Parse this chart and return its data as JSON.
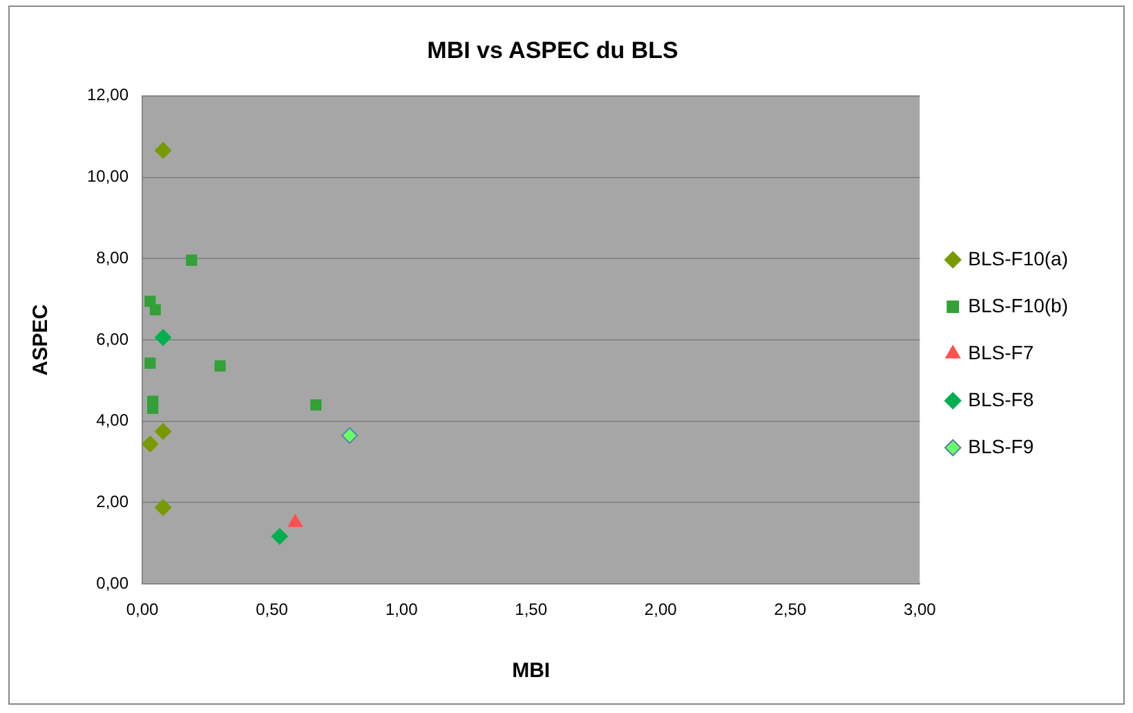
{
  "chart_data": {
    "type": "scatter",
    "title": "MBI vs ASPEC du BLS",
    "xlabel": "MBI",
    "ylabel": "ASPEC",
    "series": [
      {
        "name": "BLS-F10(a)",
        "color": "#789a00",
        "marker": "diamond",
        "x": [
          0.08,
          0.03,
          0.08,
          0.08
        ],
        "values": [
          10.66,
          3.44,
          3.75,
          1.88
        ]
      },
      {
        "name": "BLS-F10(b)",
        "color": "#33a038",
        "marker": "square",
        "x": [
          0.19,
          0.03,
          0.05,
          0.03,
          0.04,
          0.04,
          0.3,
          0.67
        ],
        "values": [
          7.96,
          6.95,
          6.74,
          5.43,
          4.49,
          4.32,
          5.36,
          4.4
        ]
      },
      {
        "name": "BLS-F7",
        "color": "#ff5050",
        "marker": "triangle",
        "x": [
          0.59
        ],
        "values": [
          1.51
        ]
      },
      {
        "name": "BLS-F8",
        "color": "#00b050",
        "marker": "diamond",
        "x": [
          0.08,
          0.53
        ],
        "values": [
          6.06,
          1.17
        ]
      },
      {
        "name": "BLS-F9",
        "color": "#66ff66",
        "marker": "diamond",
        "x": [
          0.8
        ],
        "values": [
          3.65
        ]
      }
    ],
    "xlim": [
      0,
      3
    ],
    "ylim": [
      0,
      12
    ],
    "xticks": [
      {
        "value": 0,
        "label": "0,00"
      },
      {
        "value": 0.5,
        "label": "0,50"
      },
      {
        "value": 1,
        "label": "1,00"
      },
      {
        "value": 1.5,
        "label": "1,50"
      },
      {
        "value": 2,
        "label": "2,00"
      },
      {
        "value": 2.5,
        "label": "2,50"
      },
      {
        "value": 3,
        "label": "3,00"
      }
    ],
    "yticks": [
      {
        "value": 0,
        "label": "0,00"
      },
      {
        "value": 2,
        "label": "2,00"
      },
      {
        "value": 4,
        "label": "4,00"
      },
      {
        "value": 6,
        "label": "6,00"
      },
      {
        "value": 8,
        "label": "8,00"
      },
      {
        "value": 10,
        "label": "10,00"
      },
      {
        "value": 12,
        "label": "12,00"
      }
    ],
    "grid": "y",
    "legend": "right"
  }
}
